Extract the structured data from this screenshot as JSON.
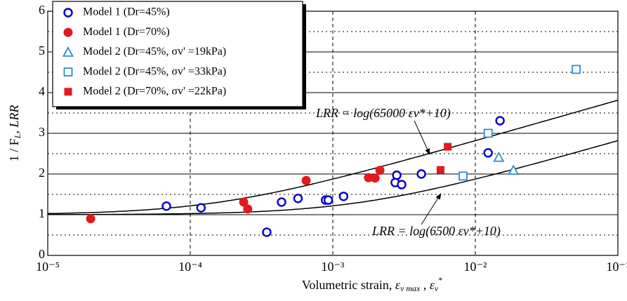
{
  "chart_data": {
    "type": "scatter",
    "xscale": "log",
    "xlim": [
      1e-05,
      0.1
    ],
    "xticks": [
      {
        "value": 1e-05,
        "label": "10⁻⁵"
      },
      {
        "value": 0.0001,
        "label": "10⁻⁴"
      },
      {
        "value": 0.001,
        "label": "10⁻³"
      },
      {
        "value": 0.01,
        "label": "10⁻²"
      },
      {
        "value": 0.1,
        "label": "10⁻¹"
      }
    ],
    "ylim": [
      0,
      6
    ],
    "yticks": [
      0,
      1,
      2,
      3,
      4,
      5,
      6
    ],
    "minor_yticks": [
      0.5,
      1.5,
      2.5,
      3.5,
      4.5,
      5.5
    ],
    "grid": true,
    "legend_loc": "upper left",
    "xlabel": [
      "Volumetric strain,  ",
      "ε",
      "v max",
      " , ",
      "ε",
      "v",
      "*"
    ],
    "ylabel": [
      "1 / F",
      "L",
      ",  ",
      "LRR"
    ],
    "curves": [
      {
        "label": "LRR = log(65000 εv*+10)",
        "coefficient": 65000,
        "offset": 10
      },
      {
        "label": "LRR = log(6500 εv*+10)",
        "coefficient": 6500,
        "offset": 10
      }
    ],
    "series": [
      {
        "name": "Model 1 (Dr=45%)",
        "color": "#0000cc",
        "marker": "circle-open",
        "x": [
          6.8e-05,
          0.000119,
          0.000344,
          0.000437,
          0.00057,
          0.00089,
          0.00093,
          0.00119,
          0.00281,
          0.00274,
          0.00304,
          0.00418,
          0.0123,
          0.0149
        ],
        "values": [
          1.21,
          1.17,
          0.57,
          1.31,
          1.4,
          1.36,
          1.36,
          1.45,
          1.97,
          1.79,
          1.74,
          2.0,
          2.52,
          3.31
        ]
      },
      {
        "name": "Model 1 (Dr=70%)",
        "color": "#e31a1c",
        "marker": "circle",
        "x": [
          2e-05,
          0.000237,
          0.000253,
          0.00065,
          0.00178,
          0.00198,
          0.00214
        ],
        "values": [
          0.9,
          1.31,
          1.14,
          1.84,
          1.91,
          1.9,
          2.09
        ]
      },
      {
        "name": "Model 2 (Dr=45%,  σv' =19kPa)",
        "color": "#2a8bd8",
        "marker": "triangle-open",
        "x": [
          0.0146,
          0.0185
        ],
        "values": [
          2.41,
          2.09
        ]
      },
      {
        "name": "Model 2 (Dr=45%,  σv' =33kPa)",
        "color": "#2a8bd8",
        "marker": "square-open",
        "x": [
          0.0123,
          0.0082,
          0.051
        ],
        "values": [
          3.0,
          1.95,
          4.57
        ]
      },
      {
        "name": "Model 2 (Dr=70%,  σv' =22kPa)",
        "color": "#e31a1c",
        "marker": "square",
        "x": [
          0.0064,
          0.0057
        ],
        "values": [
          2.67,
          2.1
        ]
      }
    ]
  }
}
